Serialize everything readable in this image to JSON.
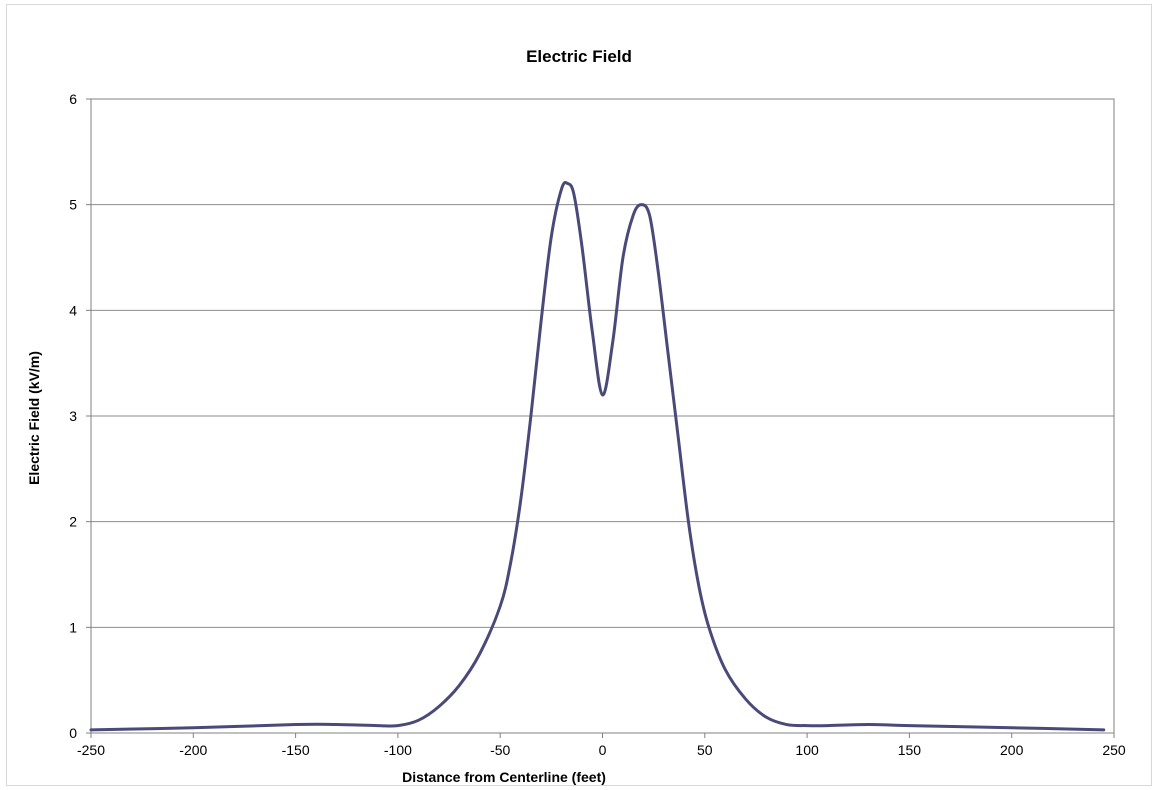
{
  "chart_data": {
    "type": "line",
    "title": "Electric Field",
    "xlabel": "Distance from Centerline (feet)",
    "ylabel": "Electric Field (kV/m)",
    "xlim": [
      -250,
      250
    ],
    "ylim": [
      0,
      6
    ],
    "xticks": [
      -250,
      -200,
      -150,
      -100,
      -50,
      0,
      50,
      100,
      150,
      200,
      250
    ],
    "yticks": [
      0,
      1,
      2,
      3,
      4,
      5,
      6
    ],
    "grid": "horizontal",
    "legend": "none",
    "series": [
      {
        "color": "#4a4a7a",
        "x": [
          -250,
          -200,
          -150,
          -130,
          -110,
          -100,
          -90,
          -80,
          -70,
          -60,
          -50,
          -45,
          -40,
          -35,
          -30,
          -25,
          -20,
          -17,
          -14,
          -10,
          -5,
          0,
          5,
          10,
          15,
          19,
          23,
          27,
          32,
          37,
          42,
          47,
          52,
          60,
          70,
          80,
          90,
          100,
          110,
          130,
          150,
          200,
          245
        ],
        "y": [
          0.03,
          0.05,
          0.08,
          0.08,
          0.07,
          0.07,
          0.12,
          0.25,
          0.45,
          0.75,
          1.2,
          1.6,
          2.2,
          3.0,
          3.9,
          4.7,
          5.15,
          5.2,
          5.1,
          4.6,
          3.8,
          3.2,
          3.7,
          4.5,
          4.9,
          5.0,
          4.9,
          4.4,
          3.6,
          2.8,
          2.0,
          1.4,
          1.0,
          0.6,
          0.32,
          0.15,
          0.08,
          0.07,
          0.07,
          0.08,
          0.07,
          0.05,
          0.03
        ]
      }
    ]
  }
}
